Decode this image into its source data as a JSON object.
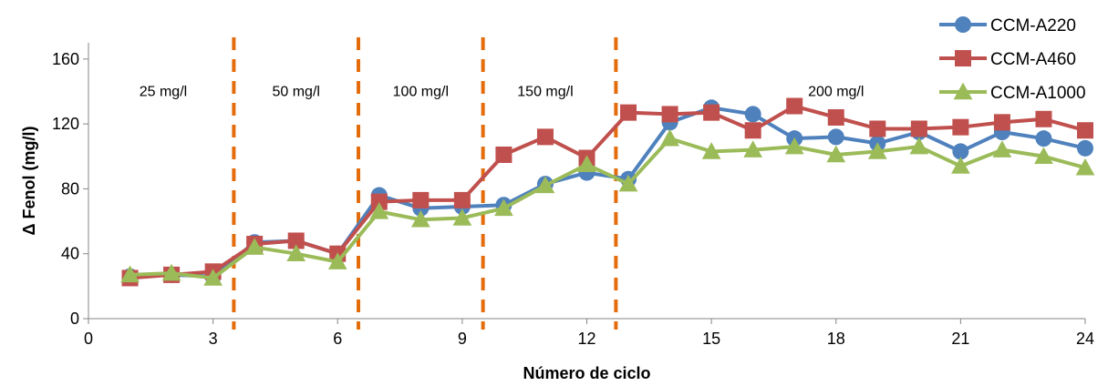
{
  "chart_data": {
    "type": "line",
    "xlabel": "Número de ciclo",
    "ylabel": "Δ Fenol (mg/l)",
    "xlim": [
      0,
      24
    ],
    "ylim": [
      0,
      170
    ],
    "xticks": [
      0,
      3,
      6,
      9,
      12,
      15,
      18,
      21,
      24
    ],
    "yticks": [
      0,
      40,
      80,
      120,
      160
    ],
    "grid": false,
    "legend_position": "top-right",
    "phase_dividers": [
      3.5,
      6.5,
      9.5,
      12.7
    ],
    "phase_labels": [
      {
        "text": "25 mg/l",
        "x": 1.8,
        "y": 140
      },
      {
        "text": "50 mg/l",
        "x": 5.0,
        "y": 140
      },
      {
        "text": "100 mg/l",
        "x": 8.0,
        "y": 140
      },
      {
        "text": "150 mg/l",
        "x": 11.0,
        "y": 140
      },
      {
        "text": "200 mg/l",
        "x": 18.0,
        "y": 140
      }
    ],
    "x": [
      1,
      2,
      3,
      4,
      5,
      6,
      7,
      8,
      9,
      10,
      11,
      12,
      13,
      14,
      15,
      16,
      17,
      18,
      19,
      20,
      21,
      22,
      23,
      24
    ],
    "series": [
      {
        "name": "CCM-A220",
        "color": "#4F81BD",
        "marker": "circle",
        "values": [
          26,
          27,
          26,
          47,
          48,
          40,
          76,
          68,
          69,
          70,
          83,
          90,
          86,
          121,
          130,
          126,
          111,
          112,
          108,
          115,
          103,
          115,
          111,
          105
        ]
      },
      {
        "name": "CCM-A460",
        "color": "#C0504D",
        "marker": "square",
        "values": [
          25,
          27,
          29,
          46,
          48,
          40,
          72,
          73,
          73,
          101,
          112,
          99,
          127,
          126,
          127,
          116,
          131,
          124,
          117,
          117,
          118,
          121,
          123,
          116
        ]
      },
      {
        "name": "CCM-A1000",
        "color": "#9BBB59",
        "marker": "triangle",
        "values": [
          27,
          28,
          25,
          44,
          40,
          35,
          66,
          61,
          62,
          68,
          82,
          95,
          83,
          111,
          103,
          104,
          106,
          101,
          103,
          106,
          94,
          104,
          100,
          93
        ]
      }
    ],
    "divider_color": "#E46C0A"
  }
}
